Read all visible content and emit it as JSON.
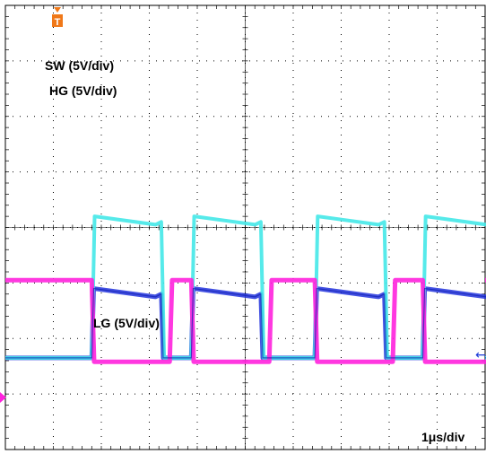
{
  "chart_data": {
    "type": "line",
    "title": "",
    "xlabel": "",
    "ylabel": "",
    "grid": true,
    "grid_divisions": {
      "x": 10,
      "y": 8
    },
    "annotations": {
      "sw": "SW (5V/div)",
      "hg": "HG (5V/div)",
      "lg": "LG (5V/div)",
      "timebase": "1μs/div"
    },
    "markers": {
      "trigger": "T",
      "ground_ref": "←"
    },
    "colors": {
      "grid": "#000000",
      "sw": "#ff22dd",
      "hg": "#44e8e8",
      "lg": "#2233dd"
    },
    "x_unit": "div",
    "y_unit": "div",
    "pulse_starts_div": [
      0.72,
      1.55,
      2.58,
      3.48
    ],
    "sw_series": {
      "name": "SW",
      "x": [
        0.0,
        0.5,
        0.72,
        1.55,
        1.8,
        2.58,
        2.8,
        3.48,
        3.8,
        4.0
      ],
      "y": [
        -1.05,
        -1.05,
        -1.05,
        -1.05,
        -1.05,
        -1.05,
        -1.05,
        -1.05,
        -1.05,
        -1.05
      ]
    },
    "series": [
      {
        "name": "SW",
        "color": "#ff22dd",
        "low": -2.42,
        "high": -0.95,
        "on_width": 0.65,
        "fall_time": 0.05
      },
      {
        "name": "HG",
        "color": "#44e8e8",
        "low": -2.35,
        "high": 0.2,
        "on_width": 0.58,
        "rise_time": 0.06
      },
      {
        "name": "LG",
        "color": "#2233dd",
        "low": -2.35,
        "high": -1.1,
        "on_width": 0.58,
        "rise_time": 0.04
      }
    ]
  }
}
